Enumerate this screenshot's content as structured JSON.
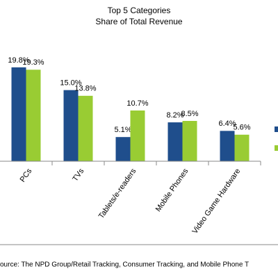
{
  "chart_data": {
    "type": "bar",
    "title": [
      "Top 5 Categories",
      "Share of Total Revenue"
    ],
    "categories": [
      "PCs",
      "TVs",
      "Tablets/e-readers",
      "Mobile Phones",
      "Video Game Hardware"
    ],
    "series": [
      {
        "color": "#1f4e8c",
        "values": [
          19.8,
          15.0,
          5.1,
          8.2,
          6.4
        ],
        "value_labels": [
          "19.8%",
          "15.0%",
          "5.1%",
          "8.2%",
          "6.4%"
        ]
      },
      {
        "color": "#99cc33",
        "values": [
          19.3,
          13.8,
          10.7,
          8.5,
          5.6
        ],
        "value_labels": [
          "19.3%",
          "13.8%",
          "10.7%",
          "8.5%",
          "5.6%"
        ]
      }
    ],
    "ylim": [
      0,
      34
    ],
    "legend": "right",
    "source": "ource: The NPD  Group/Retail Tracking, Consumer Tracking, and Mobile  Phone T"
  }
}
